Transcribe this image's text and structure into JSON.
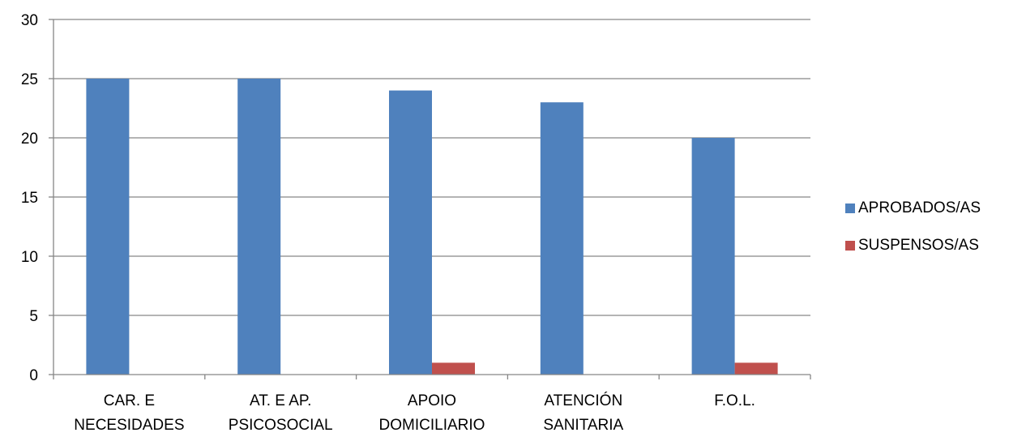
{
  "chart_data": {
    "type": "bar",
    "title": "",
    "xlabel": "",
    "ylabel": "",
    "categories": [
      [
        "CAR. E",
        "NECESIDADES"
      ],
      [
        "AT. E AP.",
        "PSICOSOCIAL"
      ],
      [
        "APOIO",
        "DOMICILIARIO"
      ],
      [
        "ATENCIÓN",
        "SANITARIA"
      ],
      [
        "F.O.L.",
        ""
      ]
    ],
    "series": [
      {
        "name": "APROBADOS/AS",
        "color": "#4F81BD",
        "values": [
          25,
          25,
          24,
          23,
          20
        ]
      },
      {
        "name": "SUSPENSOS/AS",
        "color": "#C0504D",
        "values": [
          0,
          0,
          1,
          0,
          1
        ]
      }
    ],
    "ylim": [
      0,
      30
    ],
    "yticks": [
      0,
      5,
      10,
      15,
      20,
      25,
      30
    ],
    "grid": true,
    "legend_position": "right"
  }
}
